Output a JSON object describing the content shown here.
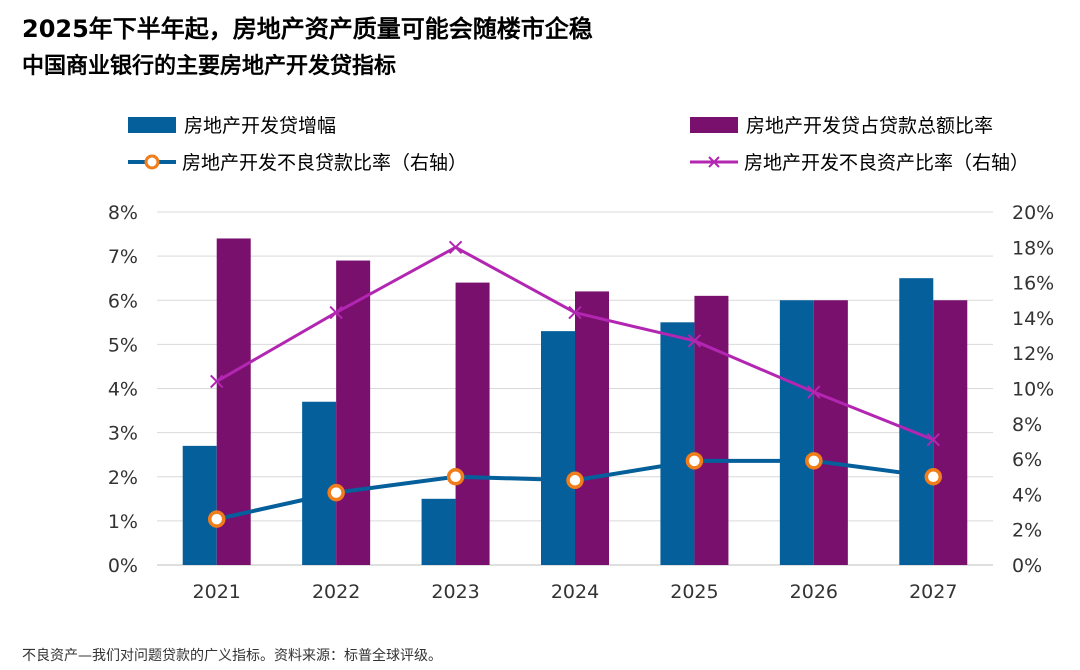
{
  "header": {
    "title": "2025年下半年起，房地产资产质量可能会随楼市企稳",
    "subtitle": "中国商业银行的主要房地产开发贷指标"
  },
  "legend": {
    "bar1": "房地产开发贷增幅",
    "bar2": "房地产开发贷占贷款总额比率",
    "line1": "房地产开发不良贷款比率（右轴）",
    "line2": "房地产开发不良资产比率（右轴）"
  },
  "footnote": "不良资产—我们对问题贷款的广义指标。资料来源：标普全球评级。",
  "colors": {
    "blue": "#045f9b",
    "purple": "#79106e",
    "magenta": "#b226b2",
    "orange": "#f07d1a",
    "grid": "#d9d9d9"
  },
  "chart_data": {
    "type": "bar",
    "categories": [
      "2021",
      "2022",
      "2023",
      "2024",
      "2025",
      "2026",
      "2027"
    ],
    "y_left": {
      "ticks": [
        "0%",
        "1%",
        "2%",
        "3%",
        "4%",
        "5%",
        "6%",
        "7%",
        "8%"
      ],
      "lim": [
        0,
        8
      ]
    },
    "y_right": {
      "ticks": [
        "0%",
        "2%",
        "4%",
        "6%",
        "8%",
        "10%",
        "12%",
        "14%",
        "16%",
        "18%",
        "20%"
      ],
      "lim": [
        0,
        20
      ]
    },
    "series": [
      {
        "name": "房地产开发贷增幅",
        "type": "bar",
        "axis": "left",
        "values": [
          2.7,
          3.7,
          1.5,
          5.3,
          5.5,
          6.0,
          6.5
        ]
      },
      {
        "name": "房地产开发贷占贷款总额比率",
        "type": "bar",
        "axis": "left",
        "values": [
          7.4,
          6.9,
          6.4,
          6.2,
          6.1,
          6.0,
          6.0
        ]
      },
      {
        "name": "房地产开发不良贷款比率（右轴）",
        "type": "line",
        "axis": "right",
        "marker": "circle",
        "values": [
          2.6,
          4.1,
          5.0,
          4.8,
          5.9,
          5.9,
          5.0
        ]
      },
      {
        "name": "房地产开发不良资产比率（右轴）",
        "type": "line",
        "axis": "right",
        "marker": "x",
        "values": [
          10.4,
          14.3,
          18.0,
          14.3,
          12.7,
          9.8,
          7.1
        ]
      }
    ],
    "grid": "horizontal",
    "legend_position": "top"
  }
}
